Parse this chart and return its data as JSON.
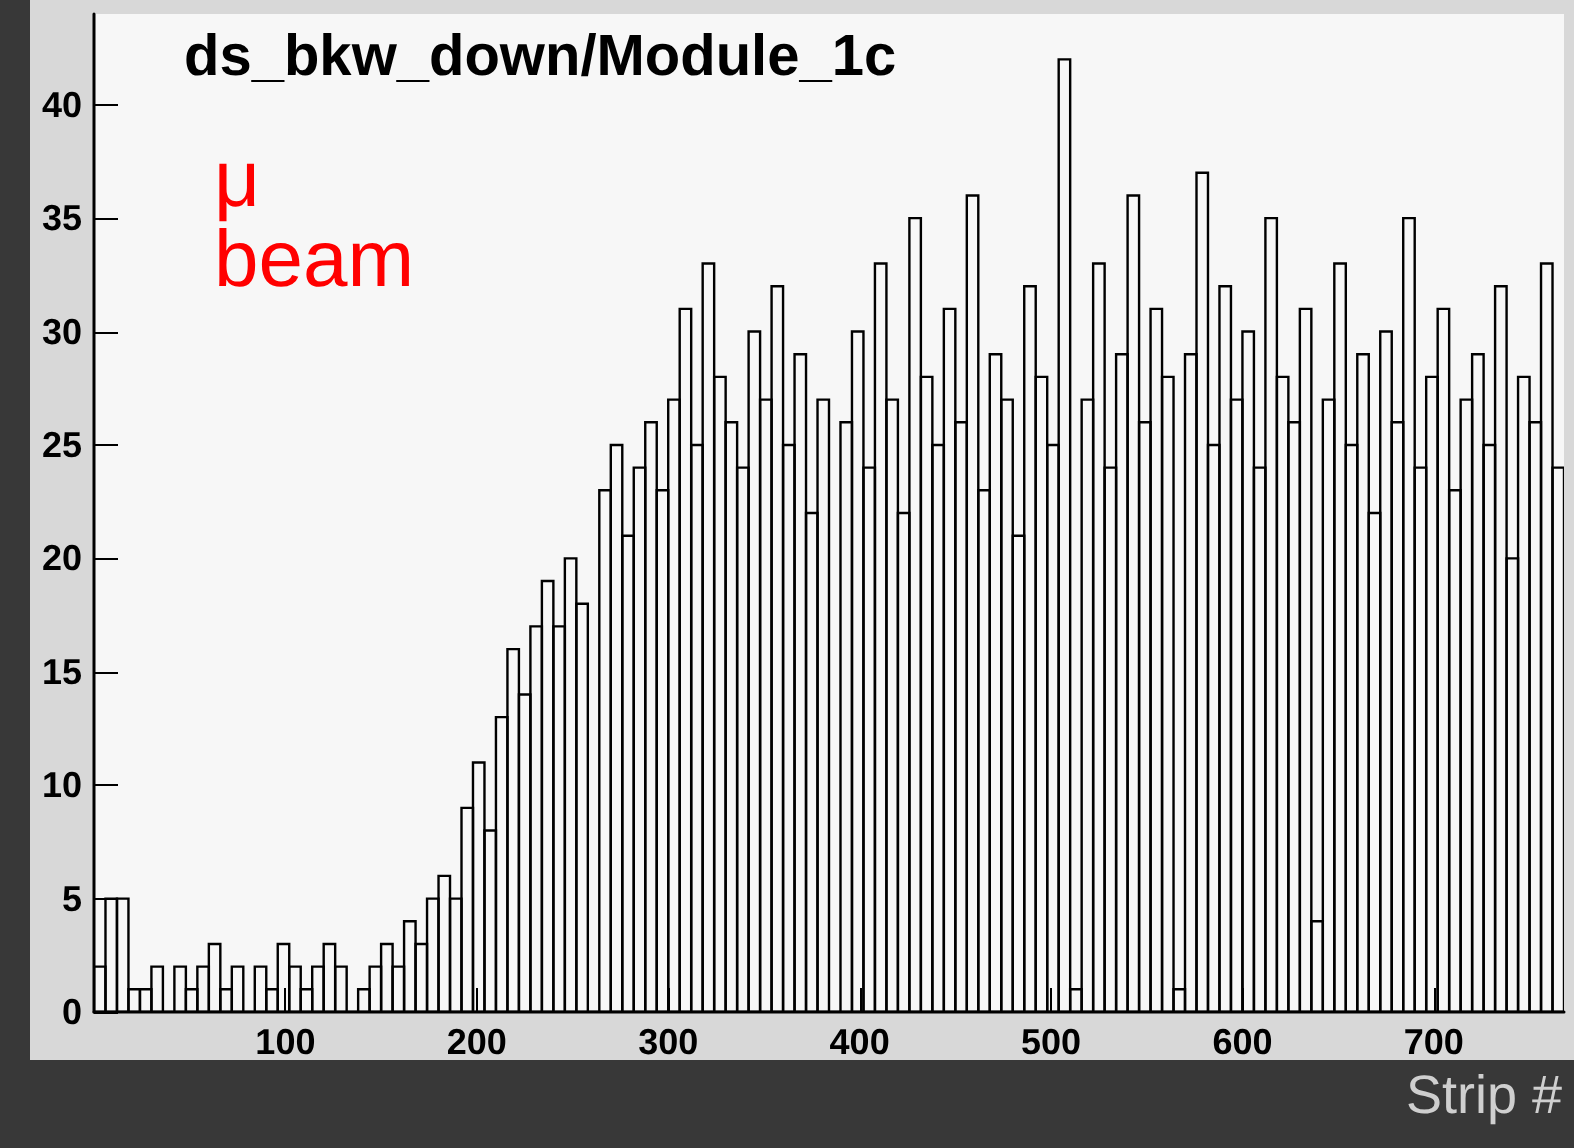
{
  "chart_data": {
    "type": "histogram",
    "xlabel": "Strip #",
    "annotations": [
      "μ beam",
      "ds_bkw_down/Module_1c"
    ],
    "bins": [
      0,
      6,
      12,
      18,
      24,
      30,
      36,
      42,
      48,
      54,
      60,
      66,
      72,
      78,
      84,
      90,
      96,
      102,
      108,
      114,
      120,
      126,
      132,
      138,
      144,
      150,
      156,
      162,
      168,
      174,
      180,
      186,
      192,
      198,
      204,
      210,
      216,
      222,
      228,
      234,
      240,
      246,
      252,
      258,
      264,
      270,
      276,
      282,
      288,
      294,
      300,
      306,
      312,
      318,
      324,
      330,
      336,
      342,
      348,
      354,
      360,
      366,
      372,
      378,
      384,
      390,
      396,
      402,
      408,
      414,
      420,
      426,
      432,
      438,
      444,
      450,
      456,
      462,
      468,
      474,
      480,
      486,
      492,
      498,
      504,
      510,
      516,
      522,
      528,
      534,
      540,
      546,
      552,
      558,
      564,
      570,
      576,
      582,
      588,
      594,
      600,
      606,
      612,
      618,
      624,
      630,
      636,
      642,
      648,
      654,
      660,
      666,
      672,
      678,
      684,
      690,
      696,
      702,
      708,
      714,
      720,
      726,
      732,
      738,
      744,
      750,
      756,
      762,
      768
    ],
    "values": [
      2,
      5,
      5,
      1,
      1,
      2,
      0,
      2,
      1,
      2,
      3,
      1,
      2,
      0,
      2,
      1,
      3,
      2,
      1,
      2,
      3,
      2,
      0,
      1,
      2,
      3,
      2,
      4,
      3,
      5,
      6,
      5,
      9,
      11,
      8,
      13,
      16,
      14,
      17,
      19,
      17,
      20,
      18,
      0,
      23,
      25,
      21,
      24,
      26,
      23,
      27,
      31,
      25,
      33,
      28,
      26,
      24,
      30,
      27,
      32,
      25,
      29,
      22,
      27,
      0,
      26,
      30,
      24,
      33,
      27,
      22,
      35,
      28,
      25,
      31,
      26,
      36,
      23,
      29,
      27,
      21,
      32,
      28,
      25,
      42,
      1,
      27,
      33,
      24,
      29,
      36,
      26,
      31,
      28,
      1,
      29,
      37,
      25,
      32,
      27,
      30,
      24,
      35,
      28,
      26,
      31,
      4,
      27,
      33,
      25,
      29,
      22,
      30,
      26,
      35,
      24,
      28,
      31,
      23,
      27,
      29,
      25,
      32,
      20,
      28,
      26,
      33,
      24
    ],
    "color": "#000000",
    "xlim": [
      0,
      768
    ],
    "xticks": [
      100,
      200,
      300,
      400,
      500,
      600,
      700
    ],
    "ylim": [
      0,
      44
    ],
    "yticks": [
      0,
      5,
      10,
      15,
      20,
      25,
      30,
      35,
      40
    ],
    "grid": false
  }
}
